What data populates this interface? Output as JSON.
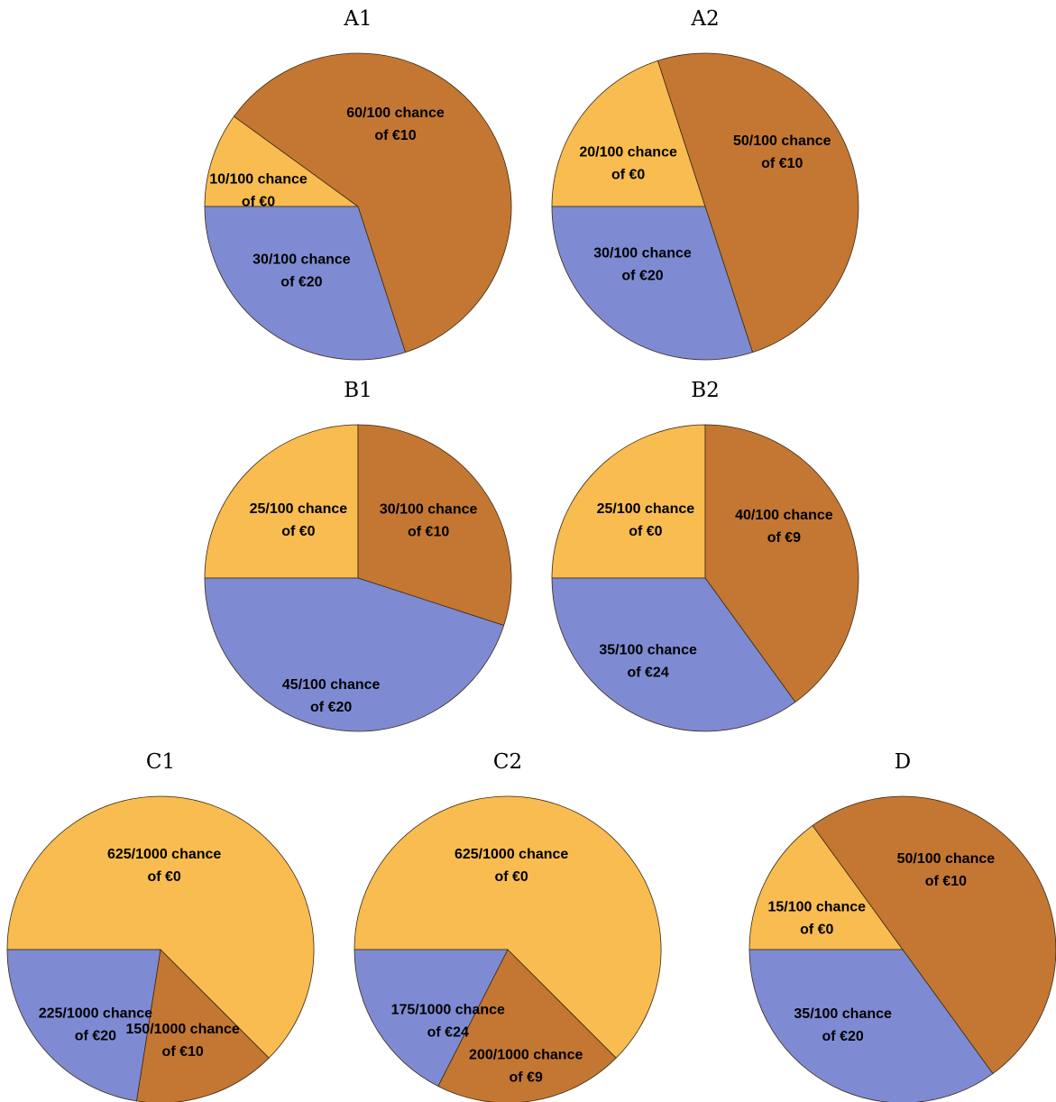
{
  "colors": {
    "zero": "#F8BC50",
    "mid": "#C47732",
    "high": "#7E8BD3"
  },
  "chart_data": [
    {
      "type": "pie",
      "title": "A1",
      "slices": [
        {
          "key": "zero",
          "value": 10,
          "line1": "10/100 chance",
          "line2": "of €0"
        },
        {
          "key": "mid",
          "value": 60,
          "line1": "60/100 chance",
          "line2": "of €10"
        },
        {
          "key": "high",
          "value": 30,
          "line1": "30/100 chance",
          "line2": "of €20"
        }
      ]
    },
    {
      "type": "pie",
      "title": "A2",
      "slices": [
        {
          "key": "zero",
          "value": 20,
          "line1": "20/100 chance",
          "line2": "of €0"
        },
        {
          "key": "mid",
          "value": 50,
          "line1": "50/100 chance",
          "line2": "of €10"
        },
        {
          "key": "high",
          "value": 30,
          "line1": "30/100 chance",
          "line2": "of €20"
        }
      ]
    },
    {
      "type": "pie",
      "title": "B1",
      "slices": [
        {
          "key": "zero",
          "value": 25,
          "line1": "25/100 chance",
          "line2": "of €0"
        },
        {
          "key": "mid",
          "value": 30,
          "line1": "30/100 chance",
          "line2": "of €10"
        },
        {
          "key": "high",
          "value": 45,
          "line1": "45/100 chance",
          "line2": "of €20"
        }
      ]
    },
    {
      "type": "pie",
      "title": "B2",
      "slices": [
        {
          "key": "zero",
          "value": 25,
          "line1": "25/100 chance",
          "line2": "of €0"
        },
        {
          "key": "mid",
          "value": 40,
          "line1": "40/100 chance",
          "line2": "of €9"
        },
        {
          "key": "high",
          "value": 35,
          "line1": "35/100 chance",
          "line2": "of €24"
        }
      ]
    },
    {
      "type": "pie",
      "title": "C1",
      "slices": [
        {
          "key": "zero",
          "value": 625,
          "line1": "625/1000 chance",
          "line2": "of €0"
        },
        {
          "key": "mid",
          "value": 150,
          "line1": "150/1000 chance",
          "line2": "of €10"
        },
        {
          "key": "high",
          "value": 225,
          "line1": "225/1000 chance",
          "line2": "of €20"
        }
      ]
    },
    {
      "type": "pie",
      "title": "C2",
      "slices": [
        {
          "key": "zero",
          "value": 625,
          "line1": "625/1000 chance",
          "line2": "of €0"
        },
        {
          "key": "mid",
          "value": 200,
          "line1": "200/1000 chance",
          "line2": "of €9"
        },
        {
          "key": "high",
          "value": 175,
          "line1": "175/1000 chance",
          "line2": "of €24"
        }
      ]
    },
    {
      "type": "pie",
      "title": "D",
      "slices": [
        {
          "key": "zero",
          "value": 15,
          "line1": "15/100 chance",
          "line2": "of €0"
        },
        {
          "key": "mid",
          "value": 50,
          "line1": "50/100 chance",
          "line2": "of €10"
        },
        {
          "key": "high",
          "value": 35,
          "line1": "35/100 chance",
          "line2": "of €20"
        }
      ]
    }
  ]
}
